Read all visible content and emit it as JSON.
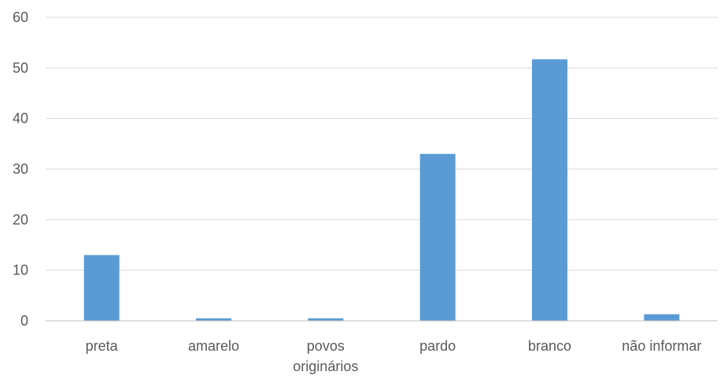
{
  "chart_data": {
    "type": "bar",
    "title": "",
    "xlabel": "",
    "ylabel": "",
    "categories": [
      "preta",
      "amarelo",
      "povos originários",
      "pardo",
      "branco",
      "não informar"
    ],
    "category_lines": [
      [
        "preta"
      ],
      [
        "amarelo"
      ],
      [
        "povos",
        "originários"
      ],
      [
        "pardo"
      ],
      [
        "branco"
      ],
      [
        "não informar"
      ]
    ],
    "values": [
      13,
      0.5,
      0.5,
      33,
      51.7,
      1.3
    ],
    "ylim": [
      0,
      60
    ],
    "yticks": [
      0,
      10,
      20,
      30,
      40,
      50,
      60
    ],
    "grid": true,
    "legend": "none",
    "bar_color": "#5b9bd5"
  }
}
